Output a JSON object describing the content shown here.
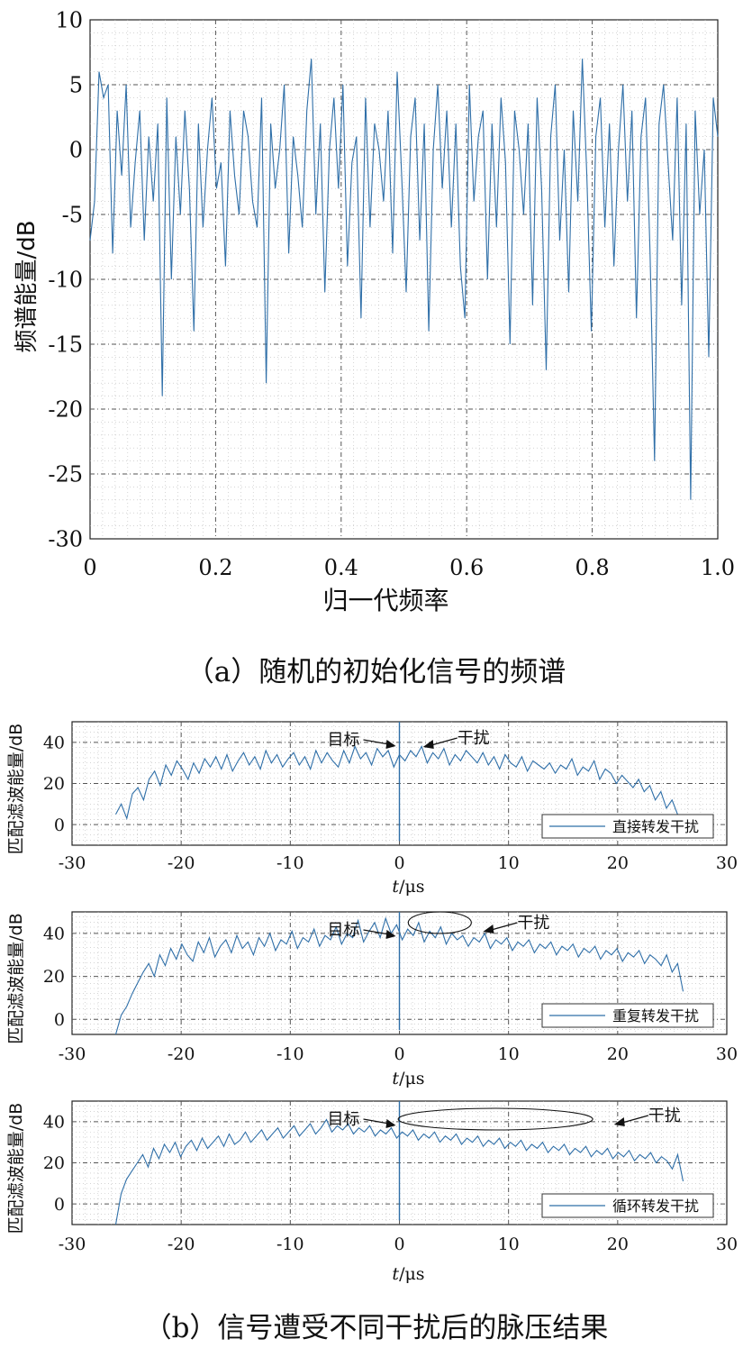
{
  "captions": {
    "a": "（a）随机的初始化信号的频谱",
    "b": "（b）信号遭受不同干扰后的脉压结果"
  },
  "colors": {
    "series": "#2f6fa8",
    "axis": "#222222",
    "grid": "#555555"
  },
  "chart_data": [
    {
      "type": "line",
      "xlabel": "归一代频率",
      "ylabel": "频谱能量/dB",
      "xlim": [
        0,
        1.0
      ],
      "ylim": [
        -30,
        10
      ],
      "xticks": [
        "0",
        "0.2",
        "0.4",
        "0.6",
        "0.8",
        "1.0"
      ],
      "xtick_values": [
        0,
        0.2,
        0.4,
        0.6,
        0.8,
        1.0
      ],
      "yticks": [
        "10",
        "5",
        "0",
        "-5",
        "-10",
        "-15",
        "-20",
        "-25",
        "-30"
      ],
      "ytick_values": [
        10,
        5,
        0,
        -5,
        -10,
        -15,
        -20,
        -25,
        -30
      ],
      "grid": true,
      "series": [
        {
          "x_start": 0,
          "x_end": 1.0,
          "values": [
            -7,
            -4,
            6,
            4,
            5,
            -8,
            3,
            -2,
            5,
            -6,
            -1,
            3,
            -7,
            1,
            -4,
            2,
            -19,
            4,
            -10,
            1,
            -5,
            3,
            -3,
            -14,
            2,
            -6,
            0,
            4,
            -3,
            -1,
            -9,
            3,
            -2,
            -5,
            3,
            1,
            -4,
            -6,
            4,
            -18,
            2,
            -3,
            0,
            5,
            -8,
            1,
            -2,
            -6,
            3,
            7,
            -5,
            2,
            -11,
            0,
            4,
            -3,
            5,
            -9,
            -1,
            1,
            -13,
            4,
            -6,
            2,
            0,
            -4,
            3,
            -8,
            6,
            -2,
            -11,
            1,
            4,
            -7,
            2,
            -14,
            0,
            5,
            -3,
            3,
            -6,
            2,
            -9,
            -13,
            5,
            -4,
            1,
            3,
            -10,
            2,
            -6,
            4,
            -1,
            -15,
            3,
            0,
            -5,
            2,
            -12,
            4,
            -3,
            -17,
            1,
            5,
            -7,
            0,
            -11,
            3,
            -4,
            7,
            -2,
            -14,
            1,
            4,
            -6,
            2,
            -9,
            0,
            5,
            -4,
            3,
            -13,
            1,
            4,
            -8,
            -24,
            2,
            5,
            -1,
            -7,
            4,
            -12,
            2,
            -27,
            3,
            -5,
            0,
            -16,
            4,
            1
          ]
        }
      ]
    },
    {
      "type": "line",
      "xlabel": "t/μs",
      "ylabel": "匹配滤波能量/dB",
      "xlim": [
        -30,
        30
      ],
      "ylim": [
        -10,
        50
      ],
      "xticks": [
        "-30",
        "-20",
        "-10",
        "0",
        "10",
        "20",
        "30"
      ],
      "xtick_values": [
        -30,
        -20,
        -10,
        0,
        10,
        20,
        30
      ],
      "yticks": [
        "40",
        "20",
        "0"
      ],
      "ytick_values": [
        40,
        20,
        0
      ],
      "grid": true,
      "legend": "直接转发干扰",
      "legend_position": "bottom-right",
      "annotations": [
        {
          "text": "目标",
          "points_to": "target"
        },
        {
          "text": "干扰",
          "points_to": "jamming"
        }
      ],
      "series": [
        {
          "name": "直接转发干扰",
          "x_start": -26,
          "x_end": 26,
          "values": [
            5,
            10,
            3,
            15,
            18,
            12,
            22,
            26,
            19,
            29,
            24,
            31,
            27,
            22,
            30,
            25,
            32,
            28,
            33,
            27,
            34,
            26,
            31,
            35,
            29,
            33,
            27,
            36,
            30,
            34,
            28,
            32,
            35,
            29,
            33,
            27,
            36,
            30,
            35,
            31,
            28,
            36,
            30,
            38,
            32,
            35,
            29,
            37,
            33,
            36,
            28,
            34,
            31,
            36,
            33,
            38,
            30,
            35,
            32,
            37,
            29,
            34,
            31,
            36,
            33,
            30,
            35,
            29,
            33,
            27,
            34,
            30,
            28,
            33,
            26,
            31,
            29,
            27,
            30,
            25,
            29,
            27,
            32,
            24,
            28,
            26,
            31,
            22,
            27,
            25,
            20,
            24,
            21,
            18,
            22,
            16,
            19,
            12,
            16,
            8,
            12,
            5,
            2
          ]
        }
      ]
    },
    {
      "type": "line",
      "xlabel": "t/μs",
      "ylabel": "匹配滤波能量/dB",
      "xlim": [
        -30,
        30
      ],
      "ylim": [
        -7,
        50
      ],
      "xticks": [
        "-30",
        "-20",
        "-10",
        "0",
        "10",
        "20",
        "30"
      ],
      "xtick_values": [
        -30,
        -20,
        -10,
        0,
        10,
        20,
        30
      ],
      "yticks": [
        "40",
        "20",
        "0"
      ],
      "ytick_values": [
        40,
        20,
        0
      ],
      "grid": true,
      "legend": "重复转发干扰",
      "legend_position": "bottom-right",
      "annotations": [
        {
          "text": "目标",
          "points_to": "target"
        },
        {
          "text": "干扰",
          "points_to": "jamming"
        }
      ],
      "series": [
        {
          "name": "重复转发干扰",
          "x_start": -26,
          "x_end": 26,
          "values": [
            -7,
            2,
            6,
            12,
            17,
            22,
            26,
            20,
            30,
            25,
            33,
            28,
            35,
            30,
            27,
            36,
            31,
            38,
            29,
            34,
            37,
            31,
            39,
            33,
            36,
            30,
            38,
            34,
            40,
            32,
            37,
            35,
            41,
            33,
            38,
            36,
            42,
            34,
            39,
            37,
            43,
            35,
            40,
            38,
            46,
            36,
            41,
            45,
            38,
            47,
            40,
            44,
            37,
            42,
            39,
            45,
            36,
            41,
            38,
            43,
            35,
            40,
            37,
            39,
            34,
            38,
            36,
            40,
            33,
            37,
            35,
            38,
            32,
            36,
            34,
            37,
            31,
            35,
            33,
            36,
            30,
            34,
            32,
            35,
            29,
            33,
            31,
            34,
            28,
            32,
            30,
            33,
            27,
            31,
            29,
            32,
            26,
            30,
            28,
            25,
            30,
            22,
            26,
            13
          ]
        }
      ]
    },
    {
      "type": "line",
      "xlabel": "t/μs",
      "ylabel": "匹配滤波能量/dB",
      "xlim": [
        -30,
        30
      ],
      "ylim": [
        -10,
        50
      ],
      "xticks": [
        "-30",
        "-20",
        "-10",
        "0",
        "10",
        "20",
        "30"
      ],
      "xtick_values": [
        -30,
        -20,
        -10,
        0,
        10,
        20,
        30
      ],
      "yticks": [
        "40",
        "20",
        "0"
      ],
      "ytick_values": [
        40,
        20,
        0
      ],
      "grid": true,
      "legend": "循环转发干扰",
      "legend_position": "bottom-right",
      "annotations": [
        {
          "text": "目标",
          "points_to": "target"
        },
        {
          "text": "干扰",
          "points_to": "jamming"
        }
      ],
      "series": [
        {
          "name": "循环转发干扰",
          "x_start": -26,
          "x_end": 26,
          "values": [
            -10,
            5,
            12,
            16,
            20,
            24,
            18,
            27,
            22,
            29,
            25,
            30,
            23,
            28,
            31,
            26,
            32,
            27,
            30,
            33,
            28,
            34,
            29,
            31,
            35,
            30,
            33,
            36,
            31,
            34,
            37,
            32,
            35,
            38,
            33,
            36,
            39,
            34,
            37,
            41,
            35,
            38,
            36,
            39,
            34,
            37,
            35,
            38,
            33,
            36,
            34,
            37,
            32,
            35,
            33,
            36,
            31,
            34,
            32,
            35,
            30,
            33,
            31,
            34,
            29,
            32,
            30,
            33,
            28,
            31,
            29,
            32,
            27,
            30,
            28,
            31,
            26,
            29,
            27,
            30,
            25,
            28,
            26,
            29,
            24,
            27,
            25,
            28,
            23,
            26,
            24,
            27,
            22,
            25,
            23,
            26,
            21,
            24,
            22,
            25,
            20,
            23,
            21,
            17,
            24,
            11
          ]
        }
      ]
    }
  ]
}
